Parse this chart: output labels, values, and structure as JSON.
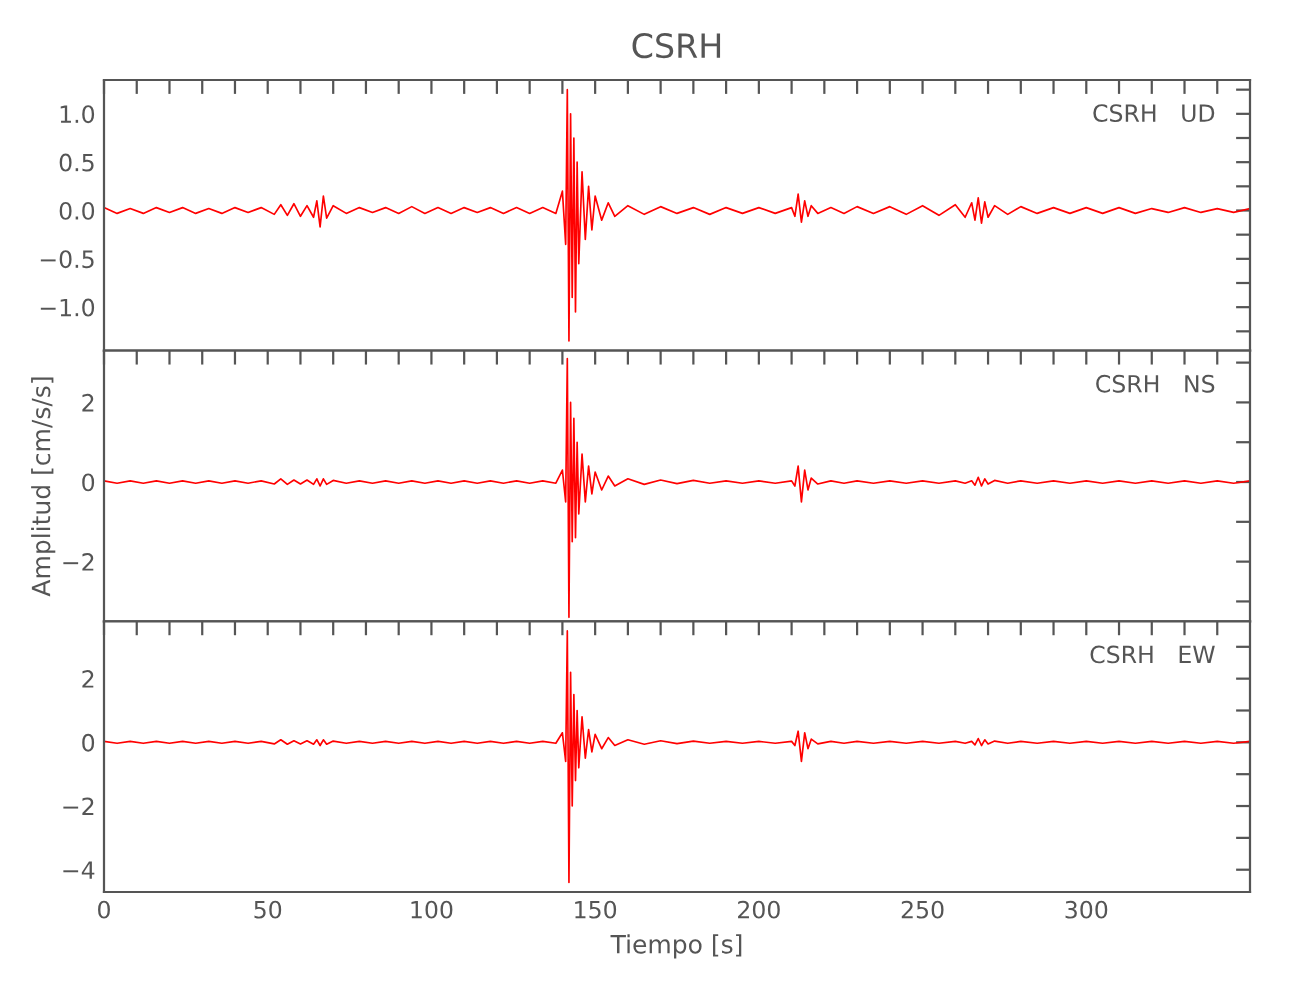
{
  "chart_data": [
    {
      "type": "line",
      "title": "CSRH",
      "annotations": [
        "CSRH   UD"
      ],
      "tick_labels": "y",
      "x": [
        0,
        4,
        8,
        12,
        16,
        20,
        24,
        28,
        32,
        36,
        40,
        44,
        48,
        52,
        54,
        56,
        58,
        60,
        62,
        64,
        65,
        66,
        67,
        68,
        70,
        74,
        78,
        82,
        86,
        90,
        94,
        98,
        102,
        106,
        110,
        114,
        118,
        122,
        126,
        130,
        134,
        138,
        140,
        141,
        141.5,
        142,
        142.5,
        143,
        143.5,
        144,
        144.5,
        145,
        146,
        147,
        148,
        149,
        150,
        152,
        154,
        156,
        160,
        165,
        170,
        175,
        180,
        185,
        190,
        195,
        200,
        205,
        210,
        211,
        212,
        213,
        214,
        215,
        216,
        218,
        222,
        226,
        230,
        235,
        240,
        245,
        250,
        255,
        260,
        263,
        265,
        266,
        267,
        268,
        269,
        270,
        272,
        276,
        280,
        285,
        290,
        295,
        300,
        305,
        310,
        315,
        320,
        325,
        330,
        335,
        340,
        345,
        350
      ],
      "series": [
        {
          "color": "#ff0000",
          "values": [
            0.03,
            -0.03,
            0.02,
            -0.03,
            0.03,
            -0.02,
            0.03,
            -0.03,
            0.02,
            -0.03,
            0.03,
            -0.02,
            0.03,
            -0.04,
            0.06,
            -0.05,
            0.07,
            -0.06,
            0.05,
            -0.07,
            0.1,
            -0.17,
            0.15,
            -0.08,
            0.05,
            -0.03,
            0.03,
            -0.02,
            0.03,
            -0.03,
            0.04,
            -0.03,
            0.03,
            -0.03,
            0.03,
            -0.02,
            0.03,
            -0.03,
            0.03,
            -0.03,
            0.03,
            -0.03,
            0.2,
            -0.35,
            1.25,
            -1.35,
            1.0,
            -0.9,
            0.75,
            -1.05,
            0.5,
            -0.55,
            0.4,
            -0.3,
            0.25,
            -0.2,
            0.15,
            -0.1,
            0.08,
            -0.06,
            0.05,
            -0.04,
            0.04,
            -0.03,
            0.03,
            -0.04,
            0.03,
            -0.03,
            0.03,
            -0.03,
            0.03,
            -0.06,
            0.17,
            -0.12,
            0.1,
            -0.06,
            0.05,
            -0.03,
            0.03,
            -0.03,
            0.04,
            -0.03,
            0.04,
            -0.04,
            0.05,
            -0.05,
            0.06,
            -0.07,
            0.08,
            -0.1,
            0.13,
            -0.13,
            0.09,
            -0.07,
            0.05,
            -0.04,
            0.04,
            -0.03,
            0.03,
            -0.03,
            0.03,
            -0.03,
            0.03,
            -0.03,
            0.02,
            -0.02,
            0.03,
            -0.02,
            0.02,
            -0.02,
            0.02
          ]
        }
      ],
      "xlim": [
        0,
        350
      ],
      "xticks": [
        0,
        {
          "value": 10,
          "label": null
        },
        {
          "value": 20,
          "label": null
        },
        {
          "value": 30,
          "label": null
        },
        {
          "value": 40,
          "label": null
        },
        50,
        {
          "value": 60,
          "label": null
        },
        {
          "value": 70,
          "label": null
        },
        {
          "value": 80,
          "label": null
        },
        {
          "value": 90,
          "label": null
        },
        100,
        {
          "value": 110,
          "label": null
        },
        {
          "value": 120,
          "label": null
        },
        {
          "value": 130,
          "label": null
        },
        {
          "value": 140,
          "label": null
        },
        150,
        {
          "value": 160,
          "label": null
        },
        {
          "value": 170,
          "label": null
        },
        {
          "value": 180,
          "label": null
        },
        {
          "value": 190,
          "label": null
        },
        200,
        {
          "value": 210,
          "label": null
        },
        {
          "value": 220,
          "label": null
        },
        {
          "value": 230,
          "label": null
        },
        {
          "value": 240,
          "label": null
        },
        250,
        {
          "value": 260,
          "label": null
        },
        {
          "value": 270,
          "label": null
        },
        {
          "value": 280,
          "label": null
        },
        {
          "value": 290,
          "label": null
        },
        300,
        {
          "value": 310,
          "label": null
        },
        {
          "value": 320,
          "label": null
        },
        {
          "value": 330,
          "label": null
        },
        {
          "value": 340,
          "label": null
        }
      ],
      "ylim": [
        -1.45,
        1.35
      ],
      "yticks": [
        {
          "value": -1.25,
          "label": null
        },
        {
          "value": -1.0,
          "label": "−1.0"
        },
        {
          "value": -0.75,
          "label": null
        },
        {
          "value": -0.5,
          "label": "−0.5"
        },
        {
          "value": -0.25,
          "label": null
        },
        {
          "value": 0,
          "label": "0.0"
        },
        {
          "value": 0.25,
          "label": null
        },
        {
          "value": 0.5,
          "label": "0.5"
        },
        {
          "value": 0.75,
          "label": null
        },
        {
          "value": 1.0,
          "label": "1.0"
        },
        {
          "value": 1.25,
          "label": null
        }
      ]
    },
    {
      "type": "line",
      "annotations": [
        "CSRH   NS"
      ],
      "tick_labels": "y",
      "ylabel": "Amplitud [cm/s/s]",
      "x": [
        0,
        4,
        8,
        12,
        16,
        20,
        24,
        28,
        32,
        36,
        40,
        44,
        48,
        52,
        54,
        56,
        58,
        60,
        62,
        64,
        65,
        66,
        67,
        68,
        70,
        74,
        78,
        82,
        86,
        90,
        94,
        98,
        102,
        106,
        110,
        114,
        118,
        122,
        126,
        130,
        134,
        138,
        140,
        141,
        141.5,
        142,
        142.5,
        143,
        143.5,
        144,
        144.5,
        145,
        146,
        147,
        148,
        149,
        150,
        152,
        154,
        156,
        160,
        165,
        170,
        175,
        180,
        185,
        190,
        195,
        200,
        205,
        210,
        211,
        212,
        213,
        214,
        215,
        216,
        218,
        222,
        226,
        230,
        235,
        240,
        245,
        250,
        255,
        260,
        263,
        265,
        266,
        267,
        268,
        269,
        270,
        272,
        276,
        280,
        285,
        290,
        295,
        300,
        305,
        310,
        315,
        320,
        325,
        330,
        335,
        340,
        345,
        350
      ],
      "series": [
        {
          "color": "#ff0000",
          "values": [
            0.03,
            -0.03,
            0.03,
            -0.03,
            0.03,
            -0.03,
            0.03,
            -0.03,
            0.03,
            -0.03,
            0.03,
            -0.03,
            0.03,
            -0.05,
            0.08,
            -0.06,
            0.05,
            -0.05,
            0.05,
            -0.06,
            0.08,
            -0.1,
            0.08,
            -0.06,
            0.04,
            -0.03,
            0.03,
            -0.03,
            0.03,
            -0.03,
            0.03,
            -0.03,
            0.03,
            -0.03,
            0.03,
            -0.03,
            0.03,
            -0.03,
            0.03,
            -0.03,
            0.03,
            -0.03,
            0.3,
            -0.5,
            3.1,
            -3.4,
            2.0,
            -1.5,
            1.6,
            -1.4,
            1.0,
            -0.8,
            0.7,
            -0.5,
            0.4,
            -0.3,
            0.25,
            -0.2,
            0.15,
            -0.1,
            0.08,
            -0.06,
            0.05,
            -0.04,
            0.04,
            -0.03,
            0.03,
            -0.03,
            0.03,
            -0.03,
            0.03,
            -0.1,
            0.4,
            -0.5,
            0.3,
            -0.2,
            0.1,
            -0.05,
            0.03,
            -0.03,
            0.03,
            -0.03,
            0.03,
            -0.03,
            0.03,
            -0.03,
            0.03,
            -0.03,
            0.03,
            -0.08,
            0.12,
            -0.1,
            0.08,
            -0.05,
            0.04,
            -0.03,
            0.03,
            -0.03,
            0.03,
            -0.03,
            0.03,
            -0.03,
            0.03,
            -0.03,
            0.03,
            -0.03,
            0.03,
            -0.03,
            0.03,
            -0.03,
            0.03
          ]
        }
      ],
      "xlim": [
        0,
        350
      ],
      "xticks": [
        0,
        {
          "value": 10,
          "label": null
        },
        {
          "value": 20,
          "label": null
        },
        {
          "value": 30,
          "label": null
        },
        {
          "value": 40,
          "label": null
        },
        50,
        {
          "value": 60,
          "label": null
        },
        {
          "value": 70,
          "label": null
        },
        {
          "value": 80,
          "label": null
        },
        {
          "value": 90,
          "label": null
        },
        100,
        {
          "value": 110,
          "label": null
        },
        {
          "value": 120,
          "label": null
        },
        {
          "value": 130,
          "label": null
        },
        {
          "value": 140,
          "label": null
        },
        150,
        {
          "value": 160,
          "label": null
        },
        {
          "value": 170,
          "label": null
        },
        {
          "value": 180,
          "label": null
        },
        {
          "value": 190,
          "label": null
        },
        200,
        {
          "value": 210,
          "label": null
        },
        {
          "value": 220,
          "label": null
        },
        {
          "value": 230,
          "label": null
        },
        {
          "value": 240,
          "label": null
        },
        250,
        {
          "value": 260,
          "label": null
        },
        {
          "value": 270,
          "label": null
        },
        {
          "value": 280,
          "label": null
        },
        {
          "value": 290,
          "label": null
        },
        300,
        {
          "value": 310,
          "label": null
        },
        {
          "value": 320,
          "label": null
        },
        {
          "value": 330,
          "label": null
        },
        {
          "value": 340,
          "label": null
        }
      ],
      "ylim": [
        -3.5,
        3.3
      ],
      "yticks": [
        {
          "value": -3,
          "label": null
        },
        {
          "value": -2,
          "label": "−2"
        },
        {
          "value": -1,
          "label": null
        },
        0,
        {
          "value": 1,
          "label": null
        },
        2,
        {
          "value": 3,
          "label": null
        }
      ]
    },
    {
      "type": "line",
      "annotations": [
        "CSRH   EW"
      ],
      "xlabel": "Tiempo [s]",
      "x": [
        0,
        4,
        8,
        12,
        16,
        20,
        24,
        28,
        32,
        36,
        40,
        44,
        48,
        52,
        54,
        56,
        58,
        60,
        62,
        64,
        65,
        66,
        67,
        68,
        70,
        74,
        78,
        82,
        86,
        90,
        94,
        98,
        102,
        106,
        110,
        114,
        118,
        122,
        126,
        130,
        134,
        138,
        140,
        141,
        141.5,
        142,
        142.5,
        143,
        143.5,
        144,
        144.5,
        145,
        146,
        147,
        148,
        149,
        150,
        152,
        154,
        156,
        160,
        165,
        170,
        175,
        180,
        185,
        190,
        195,
        200,
        205,
        210,
        211,
        212,
        213,
        214,
        215,
        216,
        218,
        222,
        226,
        230,
        235,
        240,
        245,
        250,
        255,
        260,
        263,
        265,
        266,
        267,
        268,
        269,
        270,
        272,
        276,
        280,
        285,
        290,
        295,
        300,
        305,
        310,
        315,
        320,
        325,
        330,
        335,
        340,
        345,
        350
      ],
      "series": [
        {
          "color": "#ff0000",
          "values": [
            0.03,
            -0.03,
            0.03,
            -0.03,
            0.03,
            -0.03,
            0.03,
            -0.03,
            0.03,
            -0.03,
            0.03,
            -0.03,
            0.03,
            -0.05,
            0.08,
            -0.06,
            0.05,
            -0.05,
            0.05,
            -0.06,
            0.08,
            -0.1,
            0.08,
            -0.06,
            0.04,
            -0.03,
            0.03,
            -0.03,
            0.03,
            -0.03,
            0.03,
            -0.03,
            0.03,
            -0.03,
            0.03,
            -0.03,
            0.03,
            -0.03,
            0.03,
            -0.03,
            0.03,
            -0.03,
            0.3,
            -0.6,
            3.5,
            -4.4,
            2.2,
            -2.0,
            1.5,
            -1.2,
            1.0,
            -0.8,
            0.8,
            -0.5,
            0.4,
            -0.3,
            0.25,
            -0.2,
            0.15,
            -0.1,
            0.08,
            -0.06,
            0.05,
            -0.04,
            0.04,
            -0.03,
            0.03,
            -0.03,
            0.03,
            -0.03,
            0.03,
            -0.1,
            0.35,
            -0.6,
            0.3,
            -0.2,
            0.1,
            -0.05,
            0.03,
            -0.03,
            0.03,
            -0.03,
            0.03,
            -0.03,
            0.03,
            -0.03,
            0.03,
            -0.03,
            0.03,
            -0.08,
            0.12,
            -0.1,
            0.08,
            -0.05,
            0.04,
            -0.03,
            0.03,
            -0.03,
            0.03,
            -0.03,
            0.03,
            -0.03,
            0.03,
            -0.03,
            0.03,
            -0.03,
            0.03,
            -0.03,
            0.03,
            -0.03,
            0.03
          ]
        }
      ],
      "xlim": [
        0,
        350
      ],
      "xticks": [
        0,
        {
          "value": 10,
          "label": null
        },
        {
          "value": 20,
          "label": null
        },
        {
          "value": 30,
          "label": null
        },
        {
          "value": 40,
          "label": null
        },
        50,
        {
          "value": 60,
          "label": null
        },
        {
          "value": 70,
          "label": null
        },
        {
          "value": 80,
          "label": null
        },
        {
          "value": 90,
          "label": null
        },
        100,
        {
          "value": 110,
          "label": null
        },
        {
          "value": 120,
          "label": null
        },
        {
          "value": 130,
          "label": null
        },
        {
          "value": 140,
          "label": null
        },
        150,
        {
          "value": 160,
          "label": null
        },
        {
          "value": 170,
          "label": null
        },
        {
          "value": 180,
          "label": null
        },
        {
          "value": 190,
          "label": null
        },
        200,
        {
          "value": 210,
          "label": null
        },
        {
          "value": 220,
          "label": null
        },
        {
          "value": 230,
          "label": null
        },
        {
          "value": 240,
          "label": null
        },
        250,
        {
          "value": 260,
          "label": null
        },
        {
          "value": 270,
          "label": null
        },
        {
          "value": 280,
          "label": null
        },
        {
          "value": 290,
          "label": null
        },
        300,
        {
          "value": 310,
          "label": null
        },
        {
          "value": 320,
          "label": null
        },
        {
          "value": 330,
          "label": null
        },
        {
          "value": 340,
          "label": null
        }
      ],
      "ylim": [
        -4.7,
        3.8
      ],
      "yticks": [
        {
          "value": -4,
          "label": "−4"
        },
        {
          "value": -3,
          "label": null
        },
        {
          "value": -2,
          "label": "−2"
        },
        {
          "value": -1,
          "label": null
        },
        0,
        {
          "value": 1,
          "label": null
        },
        2,
        {
          "value": 3,
          "label": null
        }
      ]
    }
  ]
}
